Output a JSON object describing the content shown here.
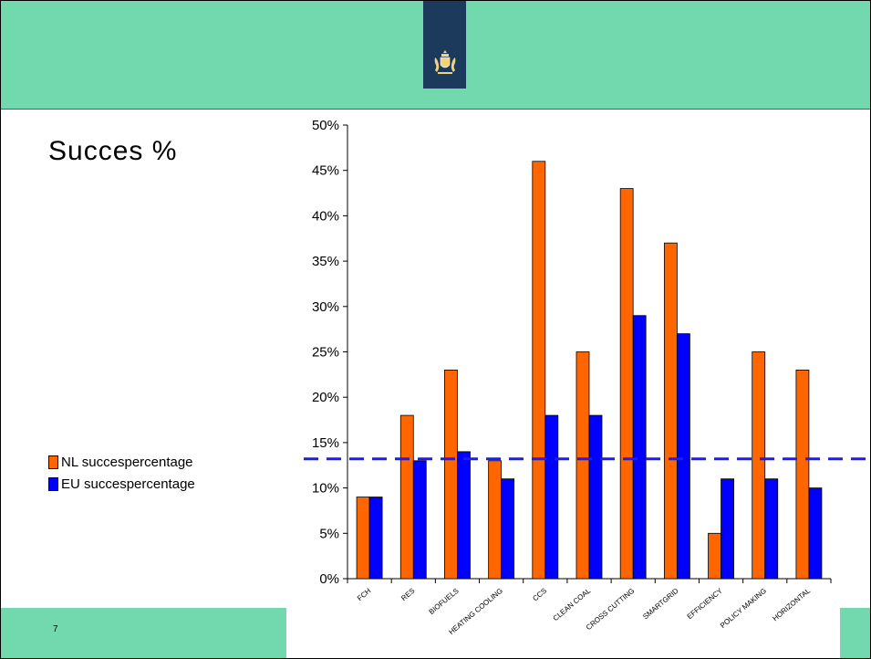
{
  "slide": {
    "title": "Succes %",
    "page_number": "7"
  },
  "logo": {
    "name": "royal-coat-of-arms"
  },
  "colors": {
    "band": "#72d8ad",
    "logo_block": "#1b3a5c",
    "nl_bar": "#ff6600",
    "eu_bar": "#0000ff",
    "reference_line": "#1a1aff"
  },
  "chart_data": {
    "type": "bar",
    "categories": [
      "FCH",
      "RES",
      "BIOFUELS",
      "HEATING COOLING",
      "CCS",
      "CLEAN COAL",
      "CROSS CUTTING",
      "SMARTGRID",
      "EFFICIENCY",
      "POLICY MAKING",
      "HORIZONTAL"
    ],
    "series": [
      {
        "name": "NL succespercentage",
        "values": [
          9,
          18,
          23,
          13,
          46,
          25,
          43,
          37,
          5,
          25,
          23
        ]
      },
      {
        "name": "EU succespercentage",
        "values": [
          9,
          13,
          14,
          11,
          18,
          18,
          29,
          27,
          11,
          11,
          10
        ]
      }
    ],
    "y_ticks": [
      "0%",
      "5%",
      "10%",
      "15%",
      "20%",
      "25%",
      "30%",
      "35%",
      "40%",
      "45%",
      "50%"
    ],
    "ylim": [
      0,
      50
    ],
    "reference_line": {
      "value": 13.2,
      "style": "dashed"
    },
    "legend_position": "left",
    "grid": false,
    "title": "",
    "xlabel": "",
    "ylabel": ""
  }
}
